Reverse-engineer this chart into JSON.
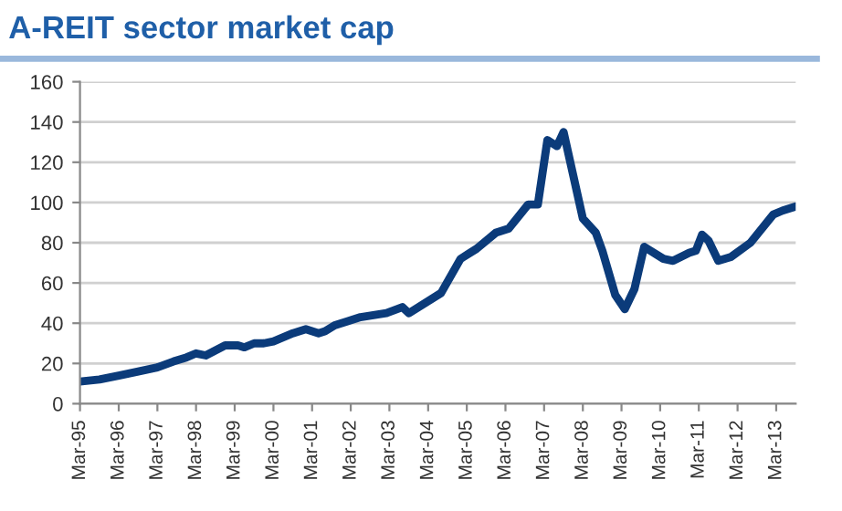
{
  "chart_data": {
    "type": "line",
    "title": "A-REIT sector market cap",
    "x": [
      "1995-03",
      "1995-09",
      "1996-03",
      "1996-09",
      "1997-03",
      "1997-08",
      "1997-12",
      "1998-03",
      "1998-06",
      "1998-12",
      "1999-04",
      "1999-06",
      "1999-09",
      "1999-12",
      "2000-03",
      "2000-09",
      "2001-01",
      "2001-05",
      "2001-07",
      "2001-10",
      "2002-02",
      "2002-06",
      "2002-10",
      "2003-02",
      "2003-07",
      "2003-09",
      "2004-07",
      "2005-01",
      "2005-06",
      "2005-12",
      "2006-04",
      "2006-10",
      "2007-01",
      "2007-04",
      "2007-07",
      "2007-09",
      "2008-03",
      "2008-07",
      "2008-09",
      "2009-01",
      "2009-04",
      "2009-07",
      "2009-10",
      "2010-04",
      "2010-07",
      "2010-12",
      "2011-02",
      "2011-04",
      "2011-06",
      "2011-09",
      "2012-01",
      "2012-07",
      "2013-02",
      "2013-05",
      "2013-09"
    ],
    "series": [
      {
        "color": "#0b3b7a",
        "values": [
          11,
          12,
          14,
          16,
          18,
          21,
          23,
          25,
          24,
          29,
          29,
          28,
          30,
          30,
          31,
          35,
          37,
          35,
          36,
          39,
          41,
          43,
          44,
          45,
          48,
          45,
          55,
          72,
          77,
          85,
          87,
          99,
          99,
          131,
          128,
          135,
          92,
          85,
          76,
          54,
          47,
          57,
          78,
          72,
          71,
          75,
          76,
          84,
          81,
          71,
          73,
          80,
          94,
          96,
          98
        ]
      }
    ],
    "xlim": [
      "1995-03",
      "2013-09"
    ],
    "xticks": [
      {
        "value": "1995-03",
        "label": "Mar-95"
      },
      {
        "value": "1996-03",
        "label": "Mar-96"
      },
      {
        "value": "1997-03",
        "label": "Mar-97"
      },
      {
        "value": "1998-03",
        "label": "Mar-98"
      },
      {
        "value": "1999-03",
        "label": "Mar-99"
      },
      {
        "value": "2000-03",
        "label": "Mar-00"
      },
      {
        "value": "2001-03",
        "label": "Mar-01"
      },
      {
        "value": "2002-03",
        "label": "Mar-02"
      },
      {
        "value": "2003-03",
        "label": "Mar-03"
      },
      {
        "value": "2004-03",
        "label": "Mar-04"
      },
      {
        "value": "2005-03",
        "label": "Mar-05"
      },
      {
        "value": "2006-03",
        "label": "Mar-06"
      },
      {
        "value": "2007-03",
        "label": "Mar-07"
      },
      {
        "value": "2008-03",
        "label": "Mar-08"
      },
      {
        "value": "2009-03",
        "label": "Mar-09"
      },
      {
        "value": "2010-03",
        "label": "Mar-10"
      },
      {
        "value": "2011-03",
        "label": "Mar-11"
      },
      {
        "value": "2012-03",
        "label": "Mar-12"
      },
      {
        "value": "2013-03",
        "label": "Mar-13"
      }
    ],
    "ylim": [
      0,
      160
    ],
    "yticks": [
      0,
      20,
      40,
      60,
      80,
      100,
      120,
      140,
      160
    ],
    "grid": "y",
    "marker": "none",
    "line_style": "solid"
  }
}
